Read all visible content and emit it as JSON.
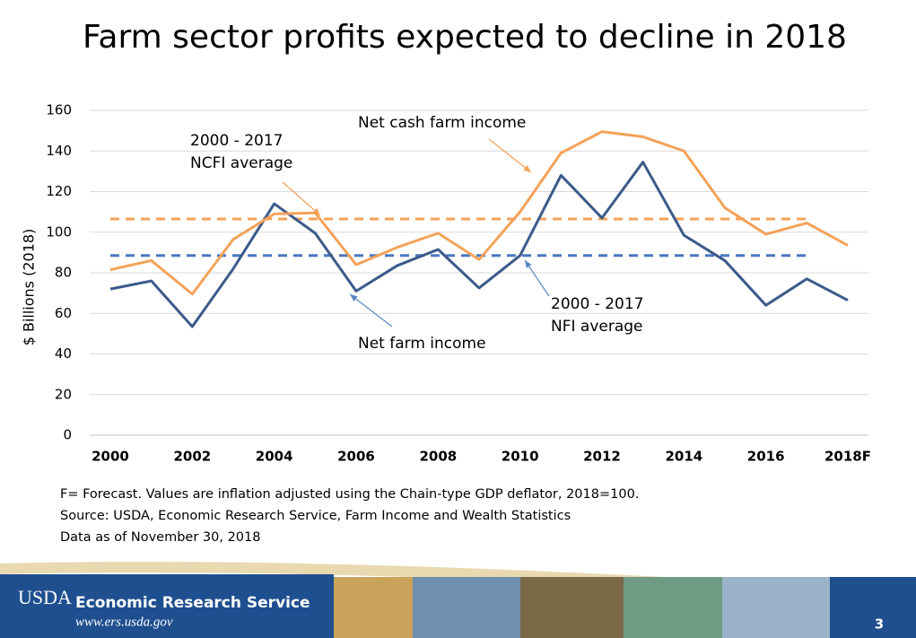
{
  "chart_data": {
    "type": "line",
    "title": "Farm sector profits expected to decline in 2018",
    "y_label": "$ Billions (2018)",
    "categories": [
      "2000",
      null,
      "2002",
      null,
      "2004",
      null,
      "2006",
      null,
      "2008",
      null,
      "2010",
      null,
      "2012",
      null,
      "2014",
      null,
      "2016",
      null,
      "2018F"
    ],
    "series": [
      {
        "name": "Net farm income",
        "color": "#3c5a8a",
        "values": [
          72,
          76,
          53.5,
          82,
          114,
          99.5,
          71,
          83.5,
          91.5,
          72.5,
          88.5,
          128,
          107,
          134.5,
          98.5,
          86,
          64,
          77,
          66.5
        ]
      },
      {
        "name": "Net cash farm income",
        "color": "#f4a259",
        "values": [
          81.5,
          86,
          69.5,
          96.5,
          109,
          109.5,
          84,
          92.5,
          99.5,
          86.5,
          110,
          139,
          149.5,
          147,
          140,
          112,
          99,
          104.5,
          93.5
        ]
      }
    ],
    "reference_lines": [
      {
        "label": [
          "2000 - 2017",
          "NCFI average"
        ],
        "value": 106.5,
        "color": "#f4a259"
      },
      {
        "label": [
          "2000 - 2017",
          "NFI average"
        ],
        "value": 88.5,
        "color": "#4a78c0"
      }
    ],
    "ylim": [
      0,
      160
    ],
    "yticks": [
      0,
      20,
      40,
      60,
      80,
      100,
      120,
      140,
      160
    ],
    "grid": true,
    "notes": [
      "F= Forecast. Values are inflation adjusted using the Chain-type GDP deflator, 2018=100.",
      "Source: USDA, Economic Research Service, Farm Income and Wealth Statistics",
      "Data as of November 30, 2018"
    ]
  },
  "footer": {
    "logo": "USDA",
    "agency": "Economic Research Service",
    "url": "www.ers.usda.gov",
    "page": "3"
  }
}
